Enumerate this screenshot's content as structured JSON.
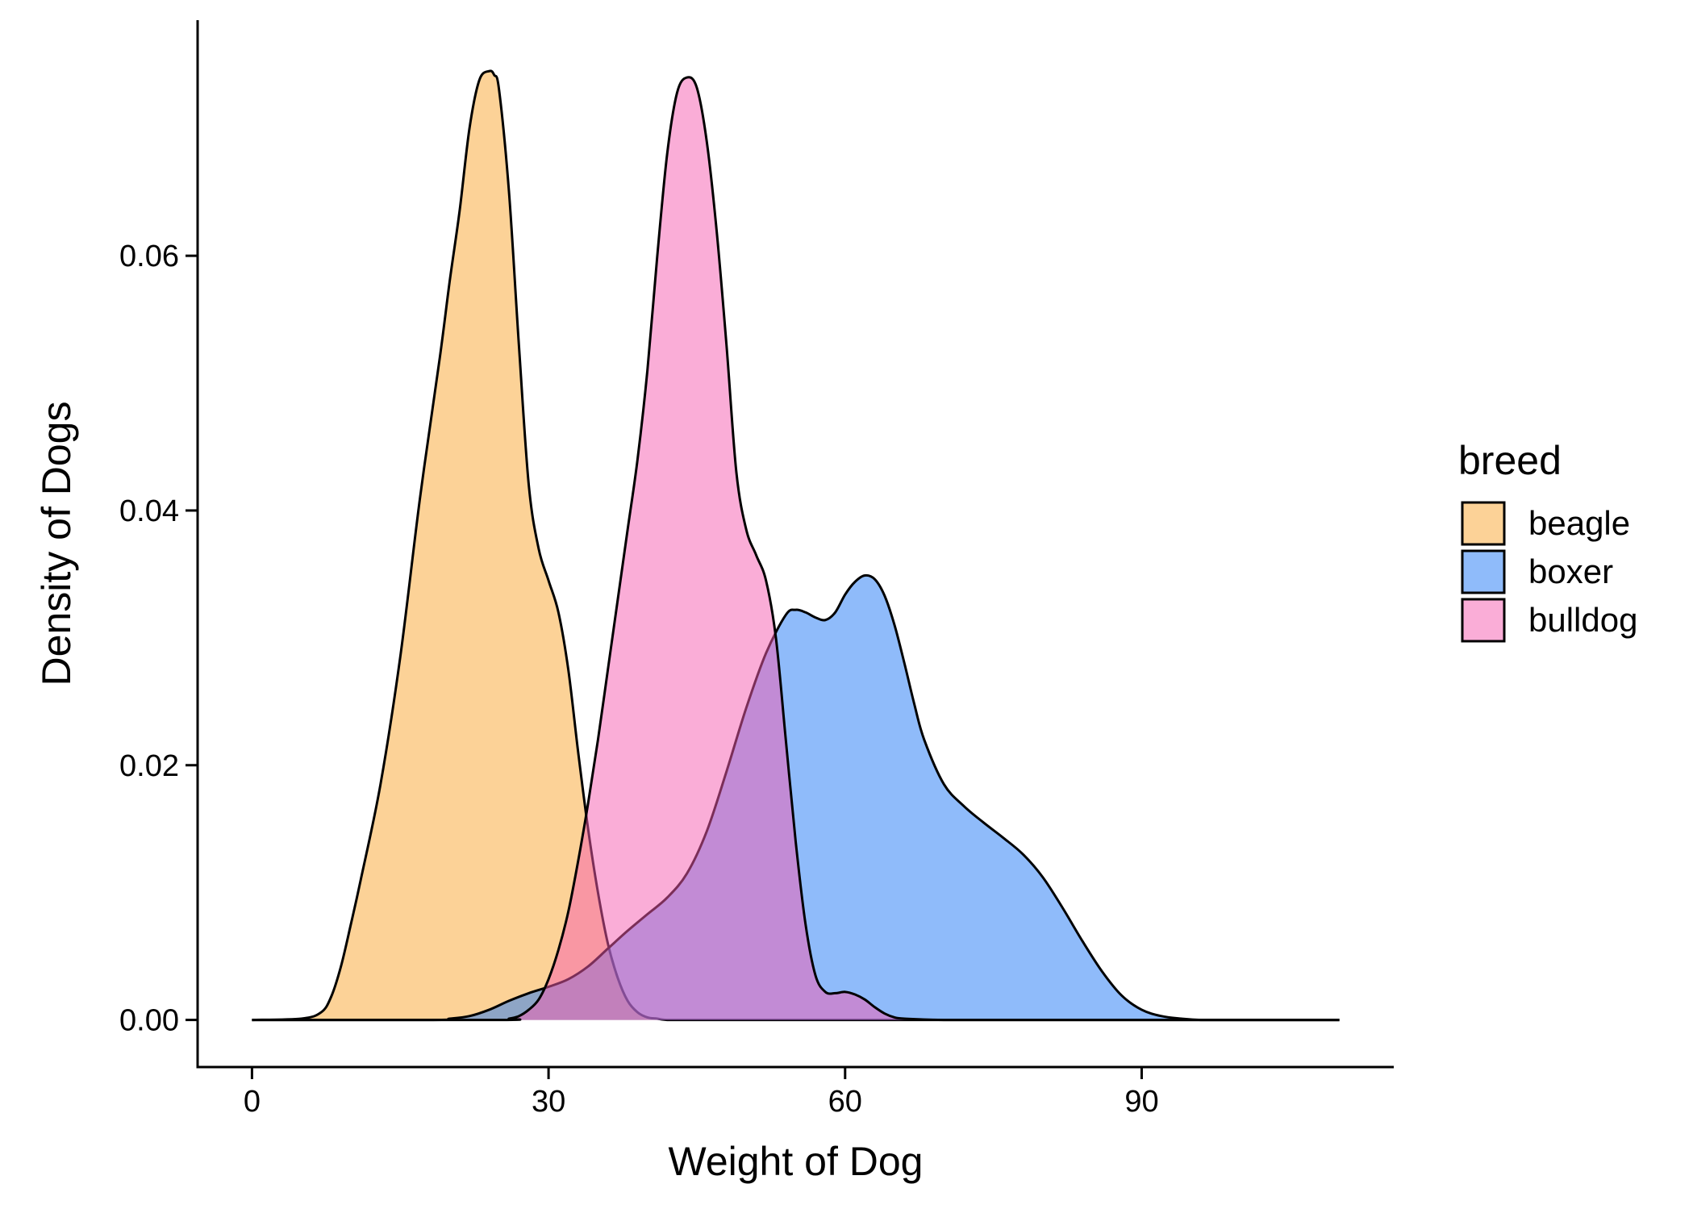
{
  "chart_data": {
    "type": "area",
    "title": "",
    "xlabel": "Weight of Dog",
    "ylabel": "Density of Dogs",
    "xlim": [
      -5.5,
      115.5
    ],
    "ylim": [
      -0.0037,
      0.0785
    ],
    "x_ticks": [
      0,
      30,
      60,
      90
    ],
    "x_tick_labels": [
      "0",
      "30",
      "60",
      "90"
    ],
    "y_ticks": [
      0,
      0.02,
      0.04,
      0.06
    ],
    "y_tick_labels": [
      "0.00",
      "0.02",
      "0.04",
      "0.06"
    ],
    "grid": false,
    "legend": {
      "title": "breed",
      "placement": "right"
    },
    "series": [
      {
        "name": "beagle",
        "color": "#F9A530",
        "x": [
          0,
          5,
          7,
          8,
          9,
          10,
          11,
          13,
          15,
          17,
          19,
          20,
          21,
          22,
          23,
          24,
          24.5,
          25,
          26,
          27,
          28,
          29,
          30,
          31,
          32,
          33,
          34,
          35,
          36,
          37,
          38,
          39,
          40,
          41,
          42,
          45,
          50,
          60,
          70,
          80,
          90,
          100,
          110
        ],
        "y": [
          0,
          0.0001,
          0.0006,
          0.0018,
          0.0042,
          0.0075,
          0.011,
          0.0185,
          0.0285,
          0.041,
          0.052,
          0.058,
          0.0635,
          0.07,
          0.0738,
          0.0745,
          0.0742,
          0.073,
          0.065,
          0.053,
          0.042,
          0.037,
          0.0345,
          0.032,
          0.0275,
          0.021,
          0.015,
          0.01,
          0.006,
          0.0033,
          0.0015,
          0.0006,
          0.0002,
          0.0001,
          0,
          0,
          0,
          0,
          0,
          0,
          0,
          0,
          0
        ]
      },
      {
        "name": "boxer",
        "color": "#1F78F5",
        "x": [
          0,
          18,
          20,
          22,
          24,
          26,
          28,
          30,
          32,
          34,
          36,
          38,
          40,
          42,
          44,
          46,
          48,
          50,
          52,
          54,
          55,
          56,
          57,
          58,
          59,
          60,
          61,
          62,
          63,
          64,
          65,
          66,
          67,
          68,
          70,
          72,
          74,
          76,
          78,
          80,
          82,
          84,
          86,
          88,
          90,
          92,
          94,
          96,
          100,
          110
        ],
        "y": [
          0,
          0,
          0.0001,
          0.0003,
          0.0008,
          0.0015,
          0.0021,
          0.0026,
          0.0032,
          0.0042,
          0.0056,
          0.007,
          0.0083,
          0.0096,
          0.0115,
          0.0148,
          0.0195,
          0.0245,
          0.0288,
          0.0318,
          0.0322,
          0.032,
          0.0316,
          0.0314,
          0.032,
          0.0334,
          0.0344,
          0.0349,
          0.0346,
          0.0333,
          0.031,
          0.028,
          0.0248,
          0.022,
          0.0185,
          0.0168,
          0.0155,
          0.0143,
          0.013,
          0.0112,
          0.0088,
          0.0062,
          0.0038,
          0.0019,
          0.0008,
          0.0003,
          0.0001,
          0,
          0,
          0
        ]
      },
      {
        "name": "bulldog",
        "color": "#F55CAF",
        "x": [
          0,
          25,
          26,
          27,
          28,
          29,
          30,
          31,
          32,
          33,
          34,
          35,
          36,
          37,
          38,
          39,
          40,
          41,
          42,
          43,
          44,
          45,
          46,
          47,
          48,
          49,
          50,
          51,
          52,
          53,
          54,
          55,
          56,
          57,
          58,
          59,
          60,
          61,
          62,
          63,
          64,
          65,
          66,
          70,
          80,
          90,
          100,
          110
        ],
        "y": [
          0,
          0,
          0.0001,
          0.0003,
          0.0008,
          0.0016,
          0.0032,
          0.0055,
          0.0085,
          0.0125,
          0.017,
          0.022,
          0.0275,
          0.033,
          0.0385,
          0.044,
          0.051,
          0.06,
          0.068,
          0.0728,
          0.074,
          0.0732,
          0.069,
          0.062,
          0.053,
          0.043,
          0.0385,
          0.0365,
          0.0345,
          0.03,
          0.022,
          0.014,
          0.0075,
          0.0035,
          0.0022,
          0.0021,
          0.0022,
          0.002,
          0.0016,
          0.001,
          0.0005,
          0.0002,
          0.0001,
          0,
          0,
          0,
          0,
          0
        ]
      }
    ]
  }
}
